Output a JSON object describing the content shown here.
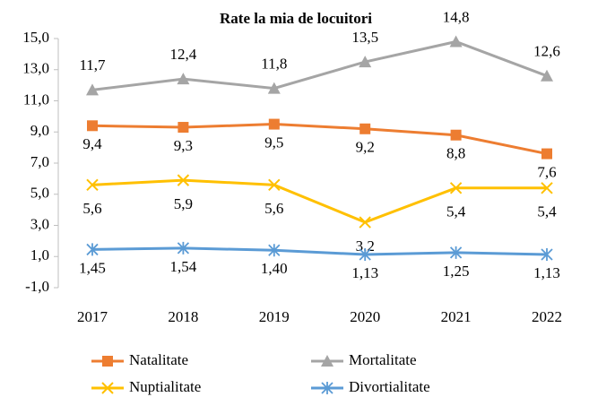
{
  "chart_data": {
    "type": "line",
    "title": "Rate la mia de locuitori",
    "categories": [
      "2017",
      "2018",
      "2019",
      "2020",
      "2021",
      "2022"
    ],
    "series": [
      {
        "name": "Natalitate",
        "color": "#ed7d31",
        "marker": "square",
        "values": [
          9.4,
          9.3,
          9.5,
          9.2,
          8.8,
          7.6
        ],
        "value_labels": [
          "9,4",
          "9,3",
          "9,5",
          "9,2",
          "8,8",
          "7,6"
        ]
      },
      {
        "name": "Mortalitate",
        "color": "#a5a5a5",
        "marker": "triangle",
        "values": [
          11.7,
          12.4,
          11.8,
          13.5,
          14.8,
          12.6
        ],
        "value_labels": [
          "11,7",
          "12,4",
          "11,8",
          "13,5",
          "14,8",
          "12,6"
        ]
      },
      {
        "name": "Nuptialitate",
        "color": "#ffc000",
        "marker": "x",
        "values": [
          5.6,
          5.9,
          5.6,
          3.2,
          5.4,
          5.4
        ],
        "value_labels": [
          "5,6",
          "5,9",
          "5,6",
          "3,2",
          "5,4",
          "5,4"
        ]
      },
      {
        "name": "Divortialitate",
        "color": "#5b9bd5",
        "marker": "star",
        "values": [
          1.45,
          1.54,
          1.4,
          1.13,
          1.25,
          1.13
        ],
        "value_labels": [
          "1,45",
          "1,54",
          "1,40",
          "1,13",
          "1,25",
          "1,13"
        ]
      }
    ],
    "ylim": [
      -1,
      15
    ],
    "yticks": [
      {
        "value": -1,
        "label": "-1,0"
      },
      {
        "value": 1,
        "label": "1,0"
      },
      {
        "value": 3,
        "label": "3,0"
      },
      {
        "value": 5,
        "label": "5,0"
      },
      {
        "value": 7,
        "label": "7,0"
      },
      {
        "value": 9,
        "label": "9,0"
      },
      {
        "value": 11,
        "label": "11,0"
      },
      {
        "value": 13,
        "label": "13,0"
      },
      {
        "value": 15,
        "label": "15,0"
      }
    ]
  }
}
